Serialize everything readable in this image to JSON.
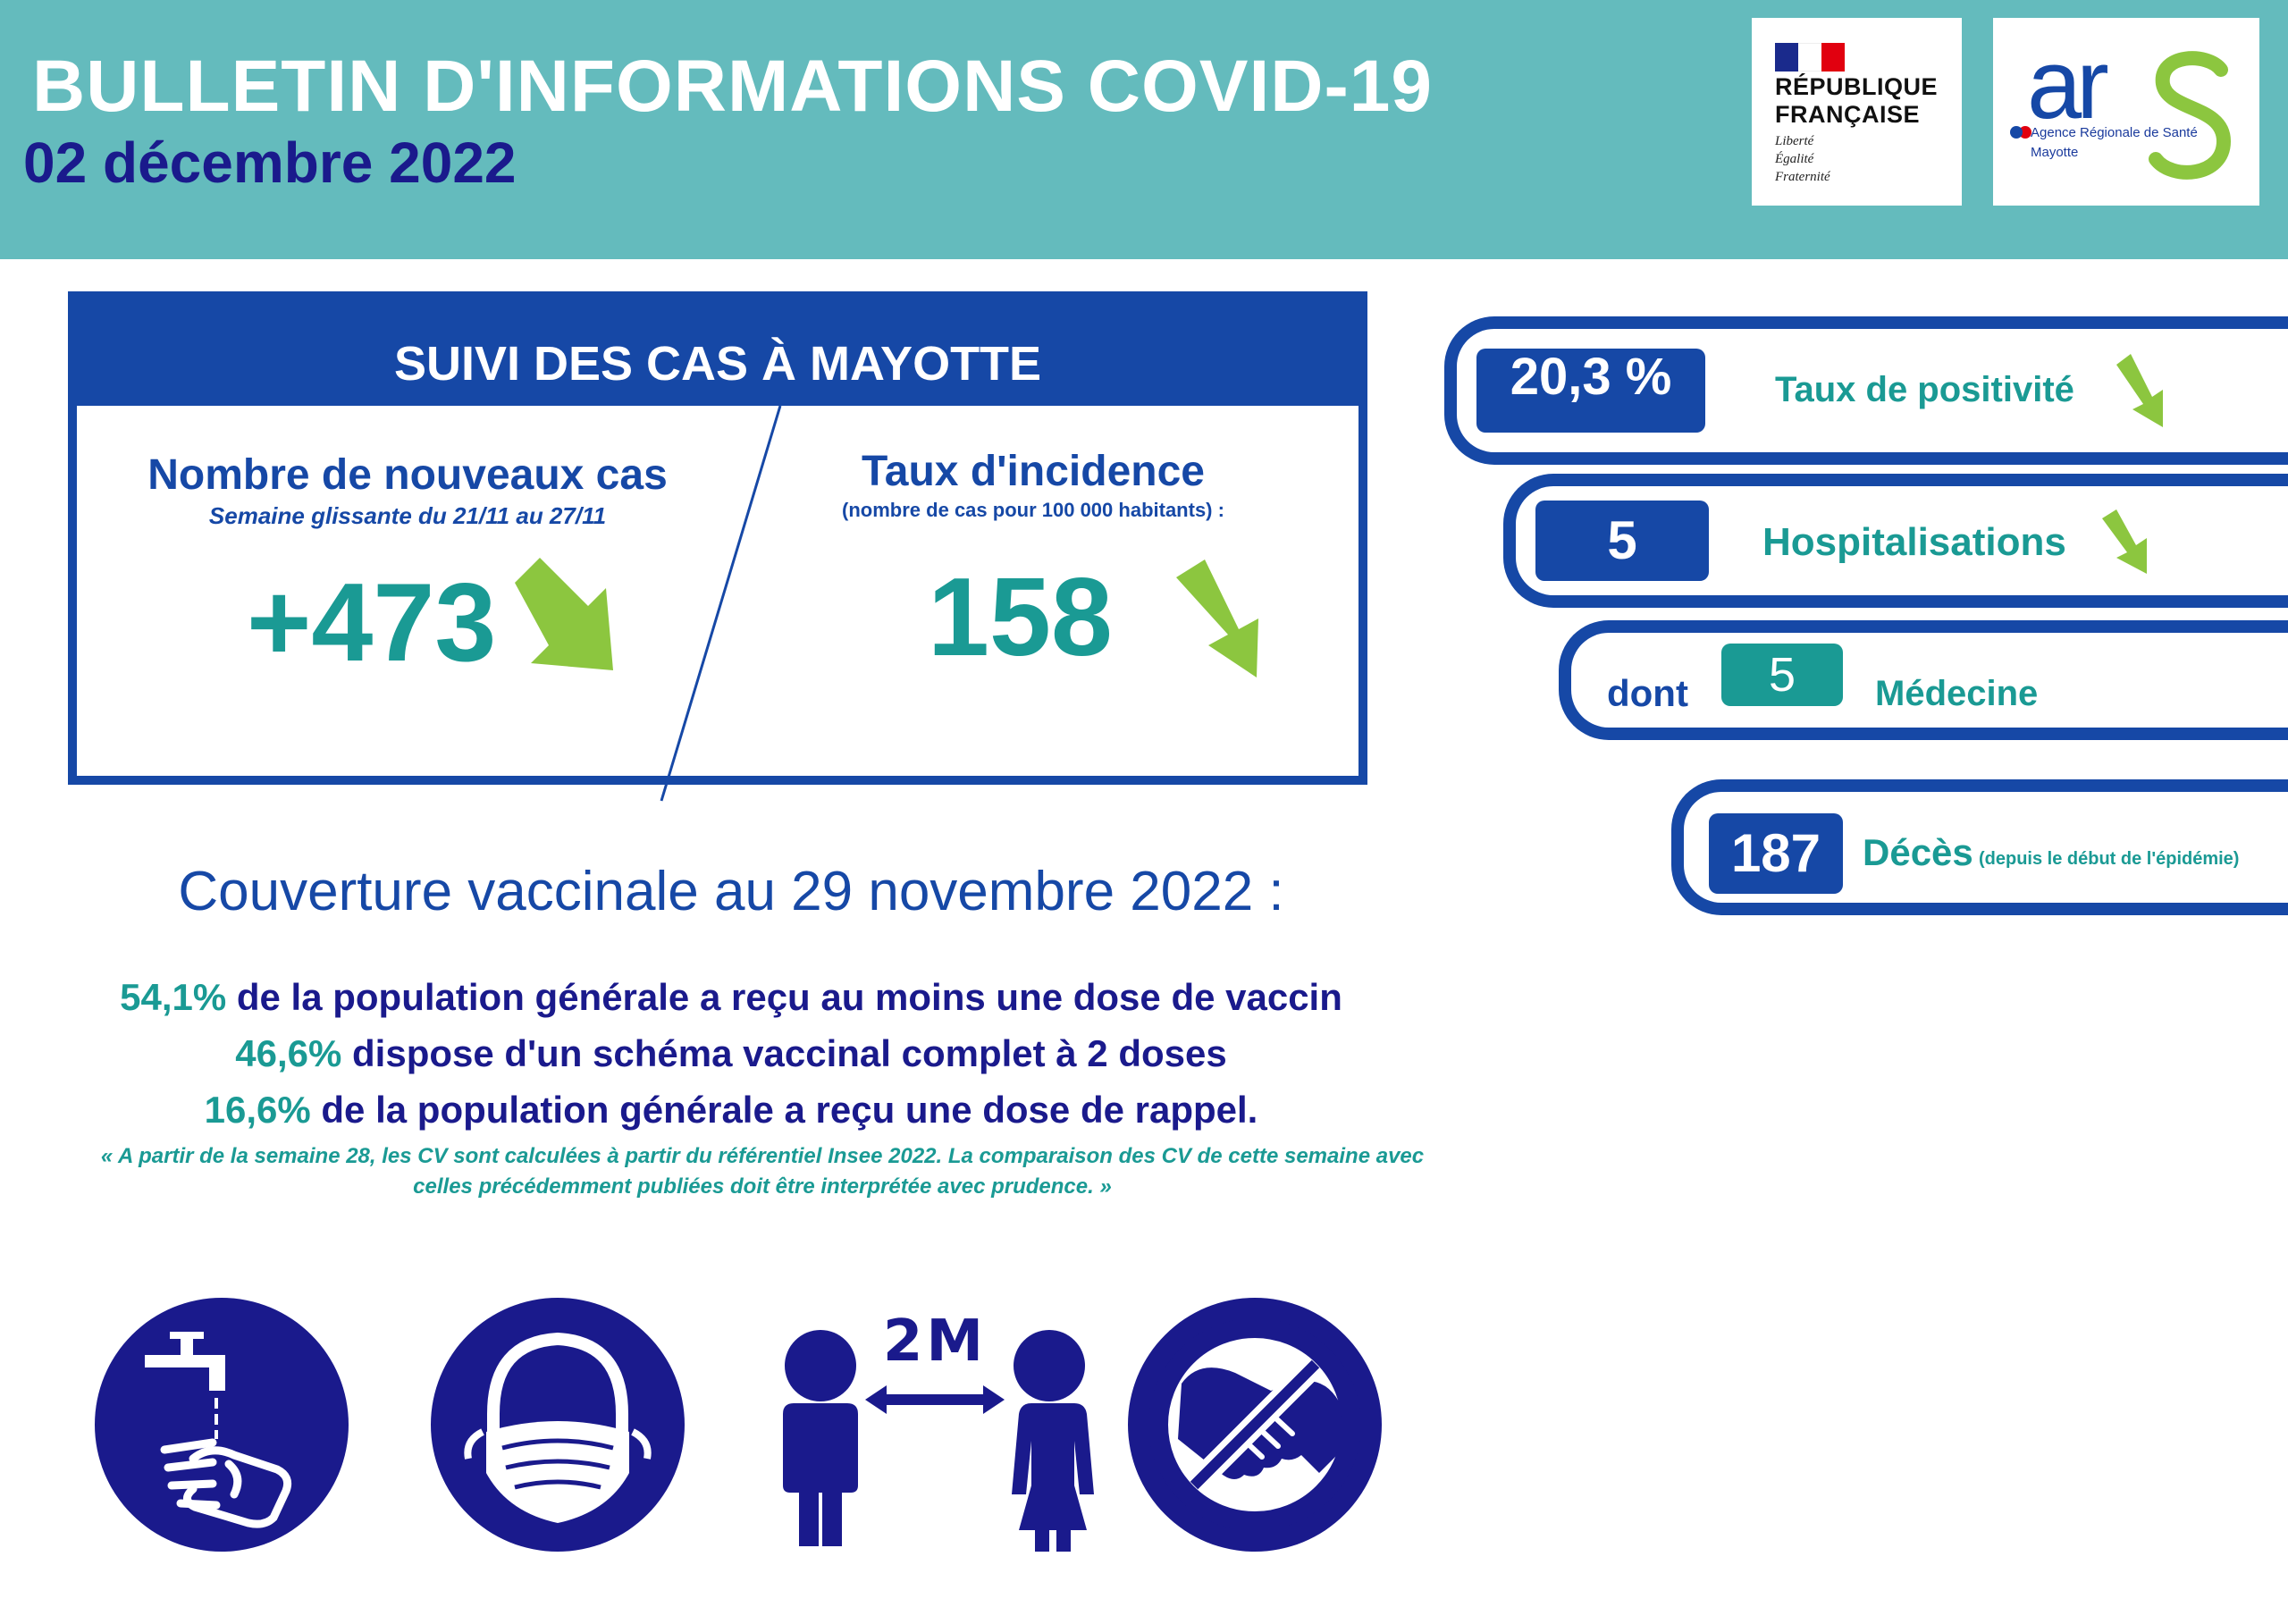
{
  "header": {
    "title": "BULLETIN D'INFORMATIONS COVID-19",
    "date": "02 décembre 2022",
    "rf_logo": {
      "line1": "RÉPUBLIQUE",
      "line2": "FRANÇAISE",
      "motto": [
        "Liberté",
        "Égalité",
        "Fraternité"
      ]
    },
    "ars_logo": {
      "wordmark": "ars",
      "subtitle": "Agence Régionale de Santé",
      "region": "Mayotte"
    }
  },
  "suivi": {
    "title": "SUIVI DES CAS À MAYOTTE",
    "new_cases": {
      "label": "Nombre de nouveaux cas",
      "sub": "Semaine glissante du 21/11 au 27/11",
      "value": "+473",
      "trend": "down"
    },
    "incidence": {
      "label": "Taux d'incidence",
      "sub": "(nombre de cas pour 100 000 habitants) :",
      "value": "158",
      "trend": "down"
    }
  },
  "indicators": {
    "positivity": {
      "value": "20,3 %",
      "label": "Taux de positivité",
      "trend": "down"
    },
    "hospital": {
      "value": "5",
      "label": "Hospitalisations",
      "trend": "down"
    },
    "medecine": {
      "prefix": "dont",
      "value": "5",
      "label": "Médecine"
    },
    "deaths": {
      "value": "187",
      "label": "Décès",
      "note": "(depuis le début de l'épidémie)"
    }
  },
  "vaccination": {
    "title": "Couverture vaccinale au 29 novembre 2022 :",
    "lines": [
      {
        "pct": "54,1%",
        "text": " de la population générale a reçu au moins une dose de vaccin"
      },
      {
        "pct": "46,6%",
        "text": " dispose d'un schéma vaccinal complet à 2 doses"
      },
      {
        "pct": "16,6%",
        "text": " de la population générale a reçu une dose de rappel."
      }
    ],
    "note_line1": "« A partir de la semaine 28, les CV sont calculées à partir du référentiel Insee 2022. La comparaison des CV de cette semaine avec",
    "note_line2": "celles précédemment publiées doit être interprétée avec prudence. »"
  },
  "gestures": {
    "distance_label": "2M",
    "icons": [
      "hand-washing-icon",
      "face-mask-icon",
      "social-distance-icon",
      "no-handshake-icon"
    ]
  },
  "colors": {
    "header_bg": "#64bbbd",
    "primary_blue": "#1648a6",
    "dark_navy": "#1a1a8c",
    "teal": "#1a9a94",
    "arrow_green": "#8cc63f",
    "icon_navy": "#1a1a8c"
  }
}
